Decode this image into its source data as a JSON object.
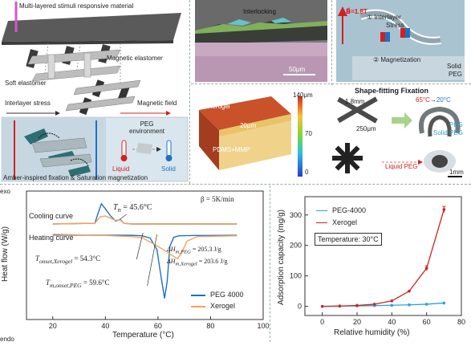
{
  "panel_a": {
    "top_label": "Multi-layered stimuli responsive material",
    "magnetic_elastomer": "Magnetic elastomer",
    "soft_elastomer": "Soft elastomer",
    "interlayer_stress": "Interlayer stress",
    "magnetic_field": "Magnetic field",
    "peg_env": "PEG\nenvironment",
    "peg_env_line1": "PEG",
    "peg_env_line2": "environment",
    "liquid": "Liquid",
    "solid": "Solid",
    "caption": "Amber-inspired fixation & Saturation magnetization"
  },
  "panel_b": {
    "interlocking": "Interlocking",
    "scalebar": "50μm"
  },
  "panel_c": {
    "field": "B⃗=1.8T",
    "step1": "① Interlayer",
    "step1b": "Stress",
    "step2": "② Magnetization",
    "solid_peg_1": "Solid",
    "solid_peg_2": "PEG"
  },
  "panel_d": {
    "xerogel": "Xerogel",
    "thickness": "20μm",
    "substrate": "PDMS+MMP",
    "cb_top": "140μm",
    "cb_mid": "70",
    "cb_bot": "0"
  },
  "panel_e": {
    "title": "Shape-fitting Fixation",
    "dim1": "1.8mm",
    "dim2": "250μm",
    "temp_hot": "65°C",
    "arrow": "→",
    "temp_cold": "20°C",
    "peg_1": "PEG",
    "peg_2": "Solid PEG",
    "liquid_peg": "Liquid PEG",
    "scalebar": "1mm"
  },
  "chart_left": {
    "ylabel": "Heat flow (W/g)",
    "exo": "exo",
    "endo": "endo",
    "xlabel": "Temperature (°C)",
    "xticks": [
      "20",
      "40",
      "60",
      "80",
      "100"
    ],
    "cooling_curve": "Cooling curve",
    "heating_curve": "Heating curve",
    "tn": "T",
    "tn_sub": "n",
    "tn_val": " = 45.6°C",
    "beta": "β = 5K/min",
    "t_onset_x": "T",
    "t_onset_x_sub": "onset,Xerogel",
    "t_onset_x_val": " = 54.3°C",
    "t_m_peg": "T",
    "t_m_peg_sub": "m,onset,PEG",
    "t_m_peg_val": " = 59.6°C",
    "dh_peg": "ΔH",
    "dh_peg_sub": "m,PEG",
    "dh_peg_val": " = 205.3 J/g",
    "dh_xero": "ΔH",
    "dh_xero_sub": "m,Xerogel",
    "dh_xero_val": " = 203.6 J/g",
    "legend": [
      "PEG 4000",
      "Xerogel"
    ],
    "colors": {
      "peg": "#1f6fc4",
      "xerogel": "#f5a15b"
    }
  },
  "chart_data": [
    {
      "type": "line",
      "title": "",
      "xlabel": "Temperature (°C)",
      "ylabel": "Heat flow (W/g)",
      "xlim": [
        10,
        100
      ],
      "series": [
        {
          "name": "PEG 4000",
          "curve": "cooling",
          "x": [
            20,
            36,
            37.5,
            38.5,
            40,
            42,
            44,
            45.6,
            47,
            50,
            60,
            70,
            80,
            90
          ],
          "y": [
            0.0,
            0.05,
            0.9,
            1.4,
            1.05,
            0.55,
            0.2,
            0.32,
            0.05,
            0.0,
            0.0,
            0.0,
            0.0,
            0.0
          ]
        },
        {
          "name": "Xerogel",
          "curve": "cooling",
          "x": [
            20,
            36,
            38,
            40,
            42,
            44,
            45.6,
            47,
            50,
            60,
            70,
            80,
            90
          ],
          "y": [
            0.0,
            0.05,
            0.5,
            0.55,
            0.4,
            0.25,
            0.28,
            0.05,
            0.0,
            0.0,
            0.0,
            0.0,
            0.0
          ]
        },
        {
          "name": "PEG 4000",
          "curve": "heating",
          "x": [
            20,
            50,
            54,
            57,
            59.6,
            61,
            62.5,
            63.5,
            64.5,
            66,
            68,
            75,
            90
          ],
          "y": [
            -0.25,
            -0.27,
            -0.3,
            -0.45,
            -1.2,
            -2.8,
            -4.4,
            -3.3,
            -1.0,
            -0.4,
            -0.3,
            -0.28,
            -0.27
          ]
        },
        {
          "name": "Xerogel",
          "curve": "heating",
          "x": [
            20,
            40,
            50,
            54.3,
            58,
            62,
            65,
            67.5,
            69,
            71,
            75,
            90
          ],
          "y": [
            -0.2,
            -0.28,
            -0.35,
            -0.45,
            -0.8,
            -1.2,
            -1.55,
            -1.8,
            -1.4,
            -0.65,
            -0.35,
            -0.3
          ]
        }
      ]
    },
    {
      "type": "line",
      "title": "",
      "xlabel": "Relative humidity (%)",
      "ylabel": "Adsorption capacity (mg/g)",
      "xlim": [
        -10,
        80
      ],
      "ylim": [
        -30,
        360
      ],
      "xticks": [
        0,
        20,
        40,
        60,
        80
      ],
      "yticks": [
        0,
        100,
        200,
        300
      ],
      "series": [
        {
          "name": "PEG-4000",
          "x": [
            0,
            10,
            20,
            30,
            40,
            50,
            60,
            70
          ],
          "y": [
            0,
            1,
            1.5,
            2.5,
            3.5,
            5,
            7,
            11
          ]
        },
        {
          "name": "Xerogel",
          "x": [
            0,
            10,
            20,
            30,
            40,
            50,
            60,
            70
          ],
          "y": [
            0,
            1,
            3,
            7,
            18,
            50,
            125,
            318
          ]
        }
      ],
      "annotation": "Temperature: 30°C",
      "legend_position": "top-left"
    }
  ],
  "chart_right": {
    "ylabel": "Adsorption capacity (mg/g)",
    "xlabel": "Relative humidity (%)",
    "legend": [
      "PEG-4000",
      "Xerogel"
    ],
    "annotation": "Temperature: 30°C",
    "colors": {
      "peg": "#2aa3dc",
      "xerogel": "#d42020"
    }
  }
}
